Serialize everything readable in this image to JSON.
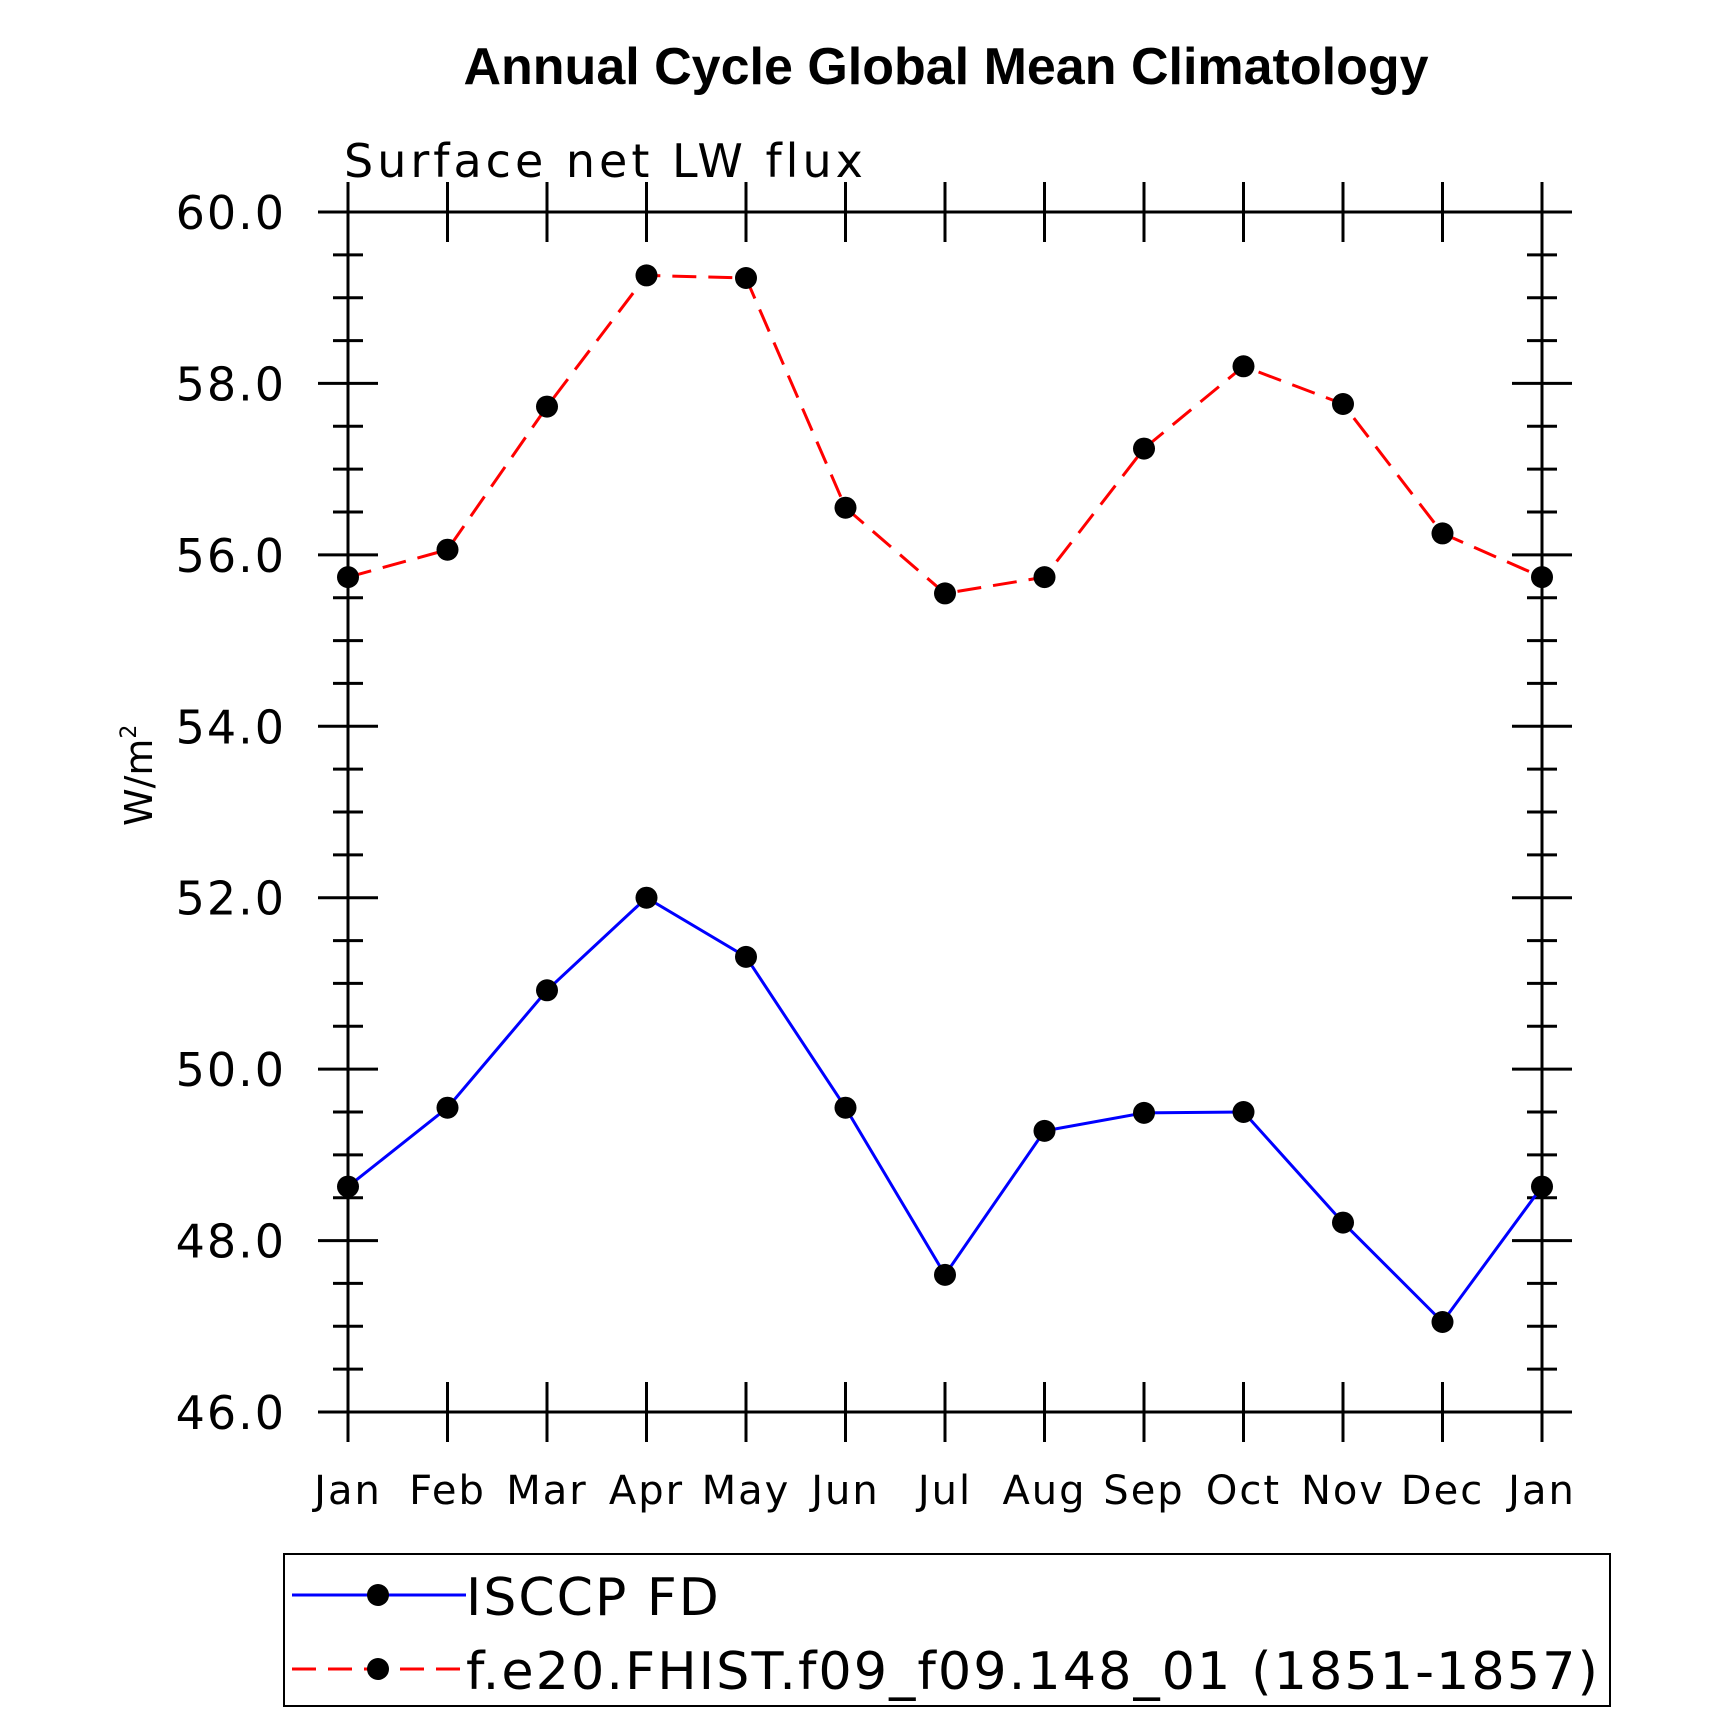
{
  "chart_data": {
    "type": "line",
    "title": "Annual Cycle Global Mean Climatology",
    "subtitle": "Surface net LW flux",
    "ylabel": "W/m",
    "ylabel_superscript": "2",
    "ylim": [
      46.0,
      60.0
    ],
    "yticks": [
      "46.0",
      "48.0",
      "50.0",
      "52.0",
      "54.0",
      "56.0",
      "58.0",
      "60.0"
    ],
    "ytick_values": [
      46,
      48,
      50,
      52,
      54,
      56,
      58,
      60
    ],
    "categories": [
      "Jan",
      "Feb",
      "Mar",
      "Apr",
      "May",
      "Jun",
      "Jul",
      "Aug",
      "Sep",
      "Oct",
      "Nov",
      "Dec",
      "Jan"
    ],
    "grid": false,
    "legend_position": "bottom",
    "series": [
      {
        "name": "ISCCP FD",
        "color": "#0000ff",
        "line_style": "solid",
        "marker": "filled-circle",
        "values": [
          48.63,
          49.55,
          50.92,
          52.0,
          51.31,
          49.55,
          47.6,
          49.28,
          49.49,
          49.5,
          48.21,
          47.05,
          48.63
        ]
      },
      {
        "name": "f.e20.FHIST.f09_f09.148_01 (1851-1857)",
        "color": "#ff0000",
        "line_style": "dashed",
        "marker": "filled-circle",
        "values": [
          55.74,
          56.06,
          57.73,
          59.26,
          59.23,
          56.55,
          55.55,
          55.74,
          57.24,
          58.2,
          57.76,
          56.25,
          55.74
        ]
      }
    ]
  }
}
